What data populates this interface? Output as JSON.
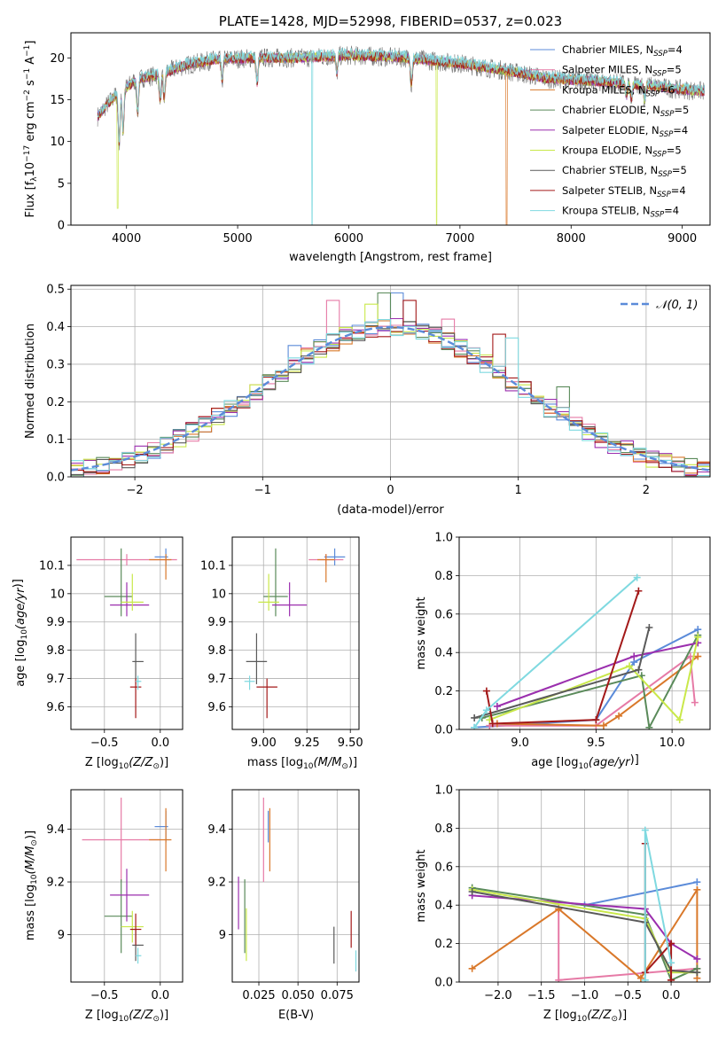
{
  "colors": [
    "#5b8bd9",
    "#e67aa6",
    "#d9782a",
    "#5a8a5a",
    "#9b2fae",
    "#c9e84a",
    "#5a5a5a",
    "#a31919",
    "#7fd9e0"
  ],
  "chart_data": [
    {
      "id": "spectrum",
      "type": "line",
      "title": "PLATE=1428, MJD=52998, FIBERID=0537, z=0.023",
      "xlabel": "wavelength [Angstrom, rest frame]",
      "ylabel": "Flux [f",
      "ylabel_full": "Flux [fλ10⁻¹⁷ erg cm⁻² s⁻¹ A⁻¹]",
      "xlim": [
        3500,
        9250
      ],
      "ylim": [
        0,
        23
      ],
      "xticks": [
        4000,
        5000,
        6000,
        7000,
        8000,
        9000
      ],
      "yticks": [
        0,
        5,
        10,
        15,
        20
      ],
      "legend_position": "top-right",
      "series": [
        {
          "name": "Chabrier MILES, N",
          "sub": "SSP",
          "val": "=4"
        },
        {
          "name": "Salpeter MILES, N",
          "sub": "SSP",
          "val": "=5"
        },
        {
          "name": "Kroupa MILES, N",
          "sub": "SSP",
          "val": "=6"
        },
        {
          "name": "Chabrier ELODIE, N",
          "sub": "SSP",
          "val": "=5"
        },
        {
          "name": "Salpeter ELODIE, N",
          "sub": "SSP",
          "val": "=4"
        },
        {
          "name": "Kroupa ELODIE, N",
          "sub": "SSP",
          "val": "=5"
        },
        {
          "name": "Chabrier STELIB, N",
          "sub": "SSP",
          "val": "=5"
        },
        {
          "name": "Salpeter STELIB, N",
          "sub": "SSP",
          "val": "=4"
        },
        {
          "name": "Kroupa STELIB, N",
          "sub": "SSP",
          "val": "=4"
        }
      ],
      "continuum": [
        [
          3740,
          13
        ],
        [
          3800,
          14
        ],
        [
          3900,
          15.5
        ],
        [
          4000,
          16.5
        ],
        [
          4100,
          17.5
        ],
        [
          4300,
          18
        ],
        [
          4500,
          19
        ],
        [
          4800,
          19.8
        ],
        [
          5200,
          20
        ],
        [
          5600,
          20
        ],
        [
          6000,
          20.3
        ],
        [
          6500,
          20
        ],
        [
          7000,
          19.3
        ],
        [
          7400,
          18.5
        ],
        [
          7800,
          17.5
        ],
        [
          8200,
          17.2
        ],
        [
          8600,
          16.8
        ],
        [
          9000,
          16.2
        ],
        [
          9200,
          16
        ]
      ],
      "absorptions": [
        [
          3934,
          6
        ],
        [
          3969,
          5
        ],
        [
          4101,
          4
        ],
        [
          4304,
          3
        ],
        [
          4340,
          3
        ],
        [
          4861,
          2.5
        ],
        [
          5175,
          3
        ],
        [
          5893,
          2
        ],
        [
          6563,
          3
        ],
        [
          8498,
          1.5
        ],
        [
          8542,
          2
        ],
        [
          8662,
          1.8
        ]
      ],
      "drops": [
        [
          3920,
          2,
          "#c9e84a"
        ],
        [
          5670,
          0,
          "#7fd9e0"
        ],
        [
          6790,
          0,
          "#c9e84a"
        ],
        [
          7420,
          0,
          "#d9782a"
        ]
      ]
    },
    {
      "id": "residuals",
      "type": "bar",
      "xlabel": "(data-model)/error",
      "ylabel": "Normed distribution",
      "xlim": [
        -2.5,
        2.5
      ],
      "ylim": [
        0,
        0.51
      ],
      "xticks": [
        -2,
        -1,
        0,
        1,
        2
      ],
      "xtick_labels": [
        "−2",
        "−1",
        "0",
        "1",
        "2"
      ],
      "yticks": [
        0,
        0.1,
        0.2,
        0.3,
        0.4,
        0.5
      ],
      "ytick_labels": [
        "0.0",
        "0.1",
        "0.2",
        "0.3",
        "0.4",
        "0.5"
      ],
      "bin_width": 0.1,
      "gaussian_label": "N(0,1)",
      "legend_position": "top-right",
      "spikes": [
        [
          -0.05,
          0.49,
          "#5a8a5a"
        ],
        [
          0.05,
          0.49,
          "#5b8bd9"
        ],
        [
          0.15,
          0.47,
          "#a31919"
        ],
        [
          -0.45,
          0.47,
          "#e67aa6"
        ],
        [
          0.45,
          0.42,
          "#e67aa6"
        ],
        [
          0.95,
          0.37,
          "#7fd9e0"
        ],
        [
          -0.15,
          0.46,
          "#c9e84a"
        ],
        [
          0.85,
          0.38,
          "#a31919"
        ],
        [
          -0.75,
          0.35,
          "#5b8bd9"
        ],
        [
          1.35,
          0.24,
          "#5a8a5a"
        ]
      ]
    },
    {
      "id": "Z-age",
      "type": "scatter",
      "xlabel": "Z [log",
      "xlabel_full": "Z [log10(Z/Z☉)]",
      "ylabel_full": "age [log10(age/yr)]",
      "xlim": [
        -0.8,
        0.2
      ],
      "ylim": [
        9.52,
        10.2
      ],
      "xticks": [
        -0.5,
        0.0
      ],
      "xtick_labels": [
        "−0.5",
        "0.0"
      ],
      "yticks": [
        9.6,
        9.7,
        9.8,
        9.9,
        10.0,
        10.1
      ],
      "points": [
        [
          0.05,
          10.13,
          0.1,
          0.02,
          0.03,
          0.03
        ],
        [
          -0.3,
          10.12,
          0.45,
          0.45,
          0.02,
          0.02
        ],
        [
          0.05,
          10.12,
          0.15,
          0.05,
          0.07,
          0.02
        ],
        [
          -0.35,
          9.99,
          0.15,
          0.1,
          0.07,
          0.17
        ],
        [
          -0.3,
          9.96,
          0.15,
          0.2,
          0.04,
          0.08
        ],
        [
          -0.25,
          9.97,
          0.1,
          0.1,
          0.03,
          0.1
        ],
        [
          -0.22,
          9.76,
          0.03,
          0.07,
          0.08,
          0.1
        ],
        [
          -0.22,
          9.67,
          0.05,
          0.05,
          0.11,
          0.03
        ],
        [
          -0.2,
          9.69,
          0.02,
          0.03,
          0.03,
          0.02
        ]
      ]
    },
    {
      "id": "mass-age",
      "type": "scatter",
      "xlabel": "mass [log",
      "xlabel_full": "mass [log10(M/M☉)]",
      "xlim": [
        8.82,
        9.55
      ],
      "ylim": [
        9.52,
        10.2
      ],
      "xticks": [
        9.0,
        9.25,
        9.5
      ],
      "xtick_labels": [
        "9.00",
        "9.25",
        "9.50"
      ],
      "yticks": [
        9.6,
        9.7,
        9.8,
        9.9,
        10.0,
        10.1
      ],
      "points": [
        [
          9.41,
          10.13,
          0.06,
          0.06,
          0.03,
          0.03
        ],
        [
          9.36,
          10.12,
          0.1,
          0.1,
          0.02,
          0.02
        ],
        [
          9.36,
          10.12,
          0.05,
          0.05,
          0.08,
          0.02
        ],
        [
          9.07,
          9.99,
          0.07,
          0.07,
          0.07,
          0.17
        ],
        [
          9.15,
          9.96,
          0.1,
          0.1,
          0.04,
          0.08
        ],
        [
          9.03,
          9.97,
          0.06,
          0.06,
          0.03,
          0.1
        ],
        [
          8.96,
          9.76,
          0.06,
          0.06,
          0.08,
          0.1
        ],
        [
          9.02,
          9.67,
          0.06,
          0.06,
          0.11,
          0.03
        ],
        [
          8.92,
          9.69,
          0.03,
          0.03,
          0.03,
          0.02
        ]
      ]
    },
    {
      "id": "age-weight",
      "type": "line",
      "xlabel": "age",
      "xlabel_full": "age [log10(age/yr)]",
      "ylabel": "mass weight",
      "xlim": [
        8.6,
        10.25
      ],
      "ylim": [
        0,
        1
      ],
      "xticks": [
        9.0,
        9.5,
        10.0
      ],
      "xtick_labels": [
        "9.0",
        "9.5",
        "10.0"
      ],
      "yticks": [
        0,
        0.2,
        0.4,
        0.6,
        0.8,
        1.0
      ],
      "ytick_labels": [
        "0.0",
        "0.2",
        "0.4",
        "0.6",
        "0.8",
        "1.0"
      ],
      "series": [
        {
          "color": "#5b8bd9",
          "points": [
            [
              8.7,
              0.01
            ],
            [
              9.5,
              0.05
            ],
            [
              9.75,
              0.35
            ],
            [
              10.17,
              0.52
            ]
          ]
        },
        {
          "color": "#e67aa6",
          "points": [
            [
              8.8,
              0.02
            ],
            [
              9.5,
              0.02
            ],
            [
              10.12,
              0.38
            ],
            [
              10.15,
              0.14
            ]
          ]
        },
        {
          "color": "#d9782a",
          "points": [
            [
              8.85,
              0.03
            ],
            [
              9.55,
              0.02
            ],
            [
              9.65,
              0.07
            ],
            [
              10.17,
              0.38
            ]
          ]
        },
        {
          "color": "#5a8a5a",
          "points": [
            [
              8.75,
              0.06
            ],
            [
              9.8,
              0.28
            ],
            [
              9.85,
              0.01
            ],
            [
              10.17,
              0.49
            ]
          ]
        },
        {
          "color": "#9b2fae",
          "points": [
            [
              8.85,
              0.12
            ],
            [
              9.75,
              0.38
            ],
            [
              10.17,
              0.45
            ]
          ]
        },
        {
          "color": "#c9e84a",
          "points": [
            [
              8.8,
              0.05
            ],
            [
              9.72,
              0.33
            ],
            [
              10.05,
              0.05
            ],
            [
              10.17,
              0.48
            ]
          ]
        },
        {
          "color": "#5a5a5a",
          "points": [
            [
              8.7,
              0.06
            ],
            [
              9.78,
              0.31
            ],
            [
              9.85,
              0.53
            ]
          ]
        },
        {
          "color": "#a31919",
          "points": [
            [
              8.78,
              0.2
            ],
            [
              8.82,
              0.03
            ],
            [
              9.5,
              0.05
            ],
            [
              9.78,
              0.72
            ]
          ]
        },
        {
          "color": "#7fd9e0",
          "points": [
            [
              8.7,
              0.01
            ],
            [
              8.78,
              0.1
            ],
            [
              9.77,
              0.79
            ]
          ]
        }
      ]
    },
    {
      "id": "Z-mass",
      "type": "scatter",
      "xlabel": "Z [log",
      "xlabel_full": "Z [log10(Z/Z☉)]",
      "ylabel_full": "mass [log10(M/M☉)]",
      "xlim": [
        -0.8,
        0.2
      ],
      "ylim": [
        8.82,
        9.55
      ],
      "xticks": [
        -0.5,
        0.0
      ],
      "xtick_labels": [
        "−0.5",
        "0.0"
      ],
      "yticks": [
        9.0,
        9.2,
        9.4
      ],
      "points": [
        [
          0.05,
          9.41,
          0.1,
          0.02,
          0.06,
          0.06
        ],
        [
          -0.35,
          9.36,
          0.35,
          0.35,
          0.16,
          0.16
        ],
        [
          0.05,
          9.36,
          0.15,
          0.05,
          0.12,
          0.12
        ],
        [
          -0.35,
          9.07,
          0.15,
          0.1,
          0.14,
          0.14
        ],
        [
          -0.3,
          9.15,
          0.15,
          0.2,
          0.1,
          0.1
        ],
        [
          -0.25,
          9.03,
          0.1,
          0.1,
          0.06,
          0.06
        ],
        [
          -0.22,
          8.96,
          0.03,
          0.07,
          0.06,
          0.06
        ],
        [
          -0.22,
          9.02,
          0.05,
          0.05,
          0.06,
          0.06
        ],
        [
          -0.2,
          8.92,
          0.02,
          0.03,
          0.03,
          0.03
        ]
      ]
    },
    {
      "id": "ebv-mass",
      "type": "scatter",
      "xlabel": "E(B-V)",
      "xlim": [
        0.008,
        0.089
      ],
      "ylim": [
        8.82,
        9.55
      ],
      "xticks": [
        0.025,
        0.05,
        0.075
      ],
      "xtick_labels": [
        "0.025",
        "0.050",
        "0.075"
      ],
      "yticks": [
        9.0,
        9.2,
        9.4
      ],
      "points": [
        [
          0.031,
          9.41,
          0,
          0,
          0.06,
          0.06
        ],
        [
          0.028,
          9.36,
          0,
          0,
          0.16,
          0.16
        ],
        [
          0.032,
          9.36,
          0,
          0,
          0.12,
          0.12
        ],
        [
          0.016,
          9.07,
          0,
          0,
          0.14,
          0.14
        ],
        [
          0.012,
          9.12,
          0,
          0,
          0.1,
          0.1
        ],
        [
          0.017,
          9.0,
          0,
          0,
          0.1,
          0.1
        ],
        [
          0.073,
          8.96,
          0,
          0,
          0.07,
          0.07
        ],
        [
          0.084,
          9.02,
          0,
          0,
          0.07,
          0.07
        ],
        [
          0.087,
          8.9,
          0,
          0,
          0.04,
          0.04
        ]
      ]
    },
    {
      "id": "Z-weight",
      "type": "line",
      "xlabel": "Z [log",
      "xlabel_full": "Z [log10(Z/Z☉)]",
      "ylabel": "mass weight",
      "xlim": [
        -2.45,
        0.45
      ],
      "ylim": [
        0,
        1
      ],
      "xticks": [
        -2.0,
        -1.5,
        -1.0,
        -0.5,
        0.0
      ],
      "xtick_labels": [
        "−2.0",
        "−1.5",
        "−1.0",
        "−0.5",
        "0.0"
      ],
      "yticks": [
        0,
        0.2,
        0.4,
        0.6,
        0.8,
        1.0
      ],
      "ytick_labels": [
        "0.0",
        "0.2",
        "0.4",
        "0.6",
        "0.8",
        "1.0"
      ],
      "series": [
        {
          "color": "#5b8bd9",
          "points": [
            [
              -1.0,
              0.4
            ],
            [
              0.3,
              0.52
            ]
          ]
        },
        {
          "color": "#e67aa6",
          "points": [
            [
              -1.3,
              0.38
            ],
            [
              -1.3,
              0.01
            ],
            [
              0.3,
              0.07
            ]
          ]
        },
        {
          "color": "#d9782a",
          "points": [
            [
              -2.3,
              0.07
            ],
            [
              -1.3,
              0.38
            ],
            [
              -0.35,
              0.02
            ],
            [
              0.3,
              0.48
            ],
            [
              0.3,
              0.02
            ]
          ]
        },
        {
          "color": "#5a8a5a",
          "points": [
            [
              -2.3,
              0.49
            ],
            [
              -0.3,
              0.35
            ],
            [
              0.0,
              0.01
            ],
            [
              0.3,
              0.07
            ]
          ]
        },
        {
          "color": "#9b2fae",
          "points": [
            [
              -2.3,
              0.45
            ],
            [
              -0.3,
              0.38
            ],
            [
              0.0,
              0.2
            ],
            [
              0.3,
              0.12
            ]
          ]
        },
        {
          "color": "#c9e84a",
          "points": [
            [
              -2.3,
              0.48
            ],
            [
              -0.3,
              0.33
            ],
            [
              0.0,
              0.05
            ],
            [
              0.3,
              0.05
            ]
          ]
        },
        {
          "color": "#5a5a5a",
          "points": [
            [
              -2.3,
              0.47
            ],
            [
              -0.3,
              0.31
            ],
            [
              0.0,
              0.06
            ],
            [
              0.3,
              0.05
            ]
          ]
        },
        {
          "color": "#a31919",
          "points": [
            [
              -0.3,
              0.72
            ],
            [
              -0.3,
              0.05
            ],
            [
              0.0,
              0.2
            ],
            [
              0.0,
              0.01
            ]
          ]
        },
        {
          "color": "#7fd9e0",
          "points": [
            [
              -0.3,
              0.01
            ],
            [
              -0.3,
              0.79
            ],
            [
              0.0,
              0.1
            ]
          ]
        }
      ]
    }
  ]
}
